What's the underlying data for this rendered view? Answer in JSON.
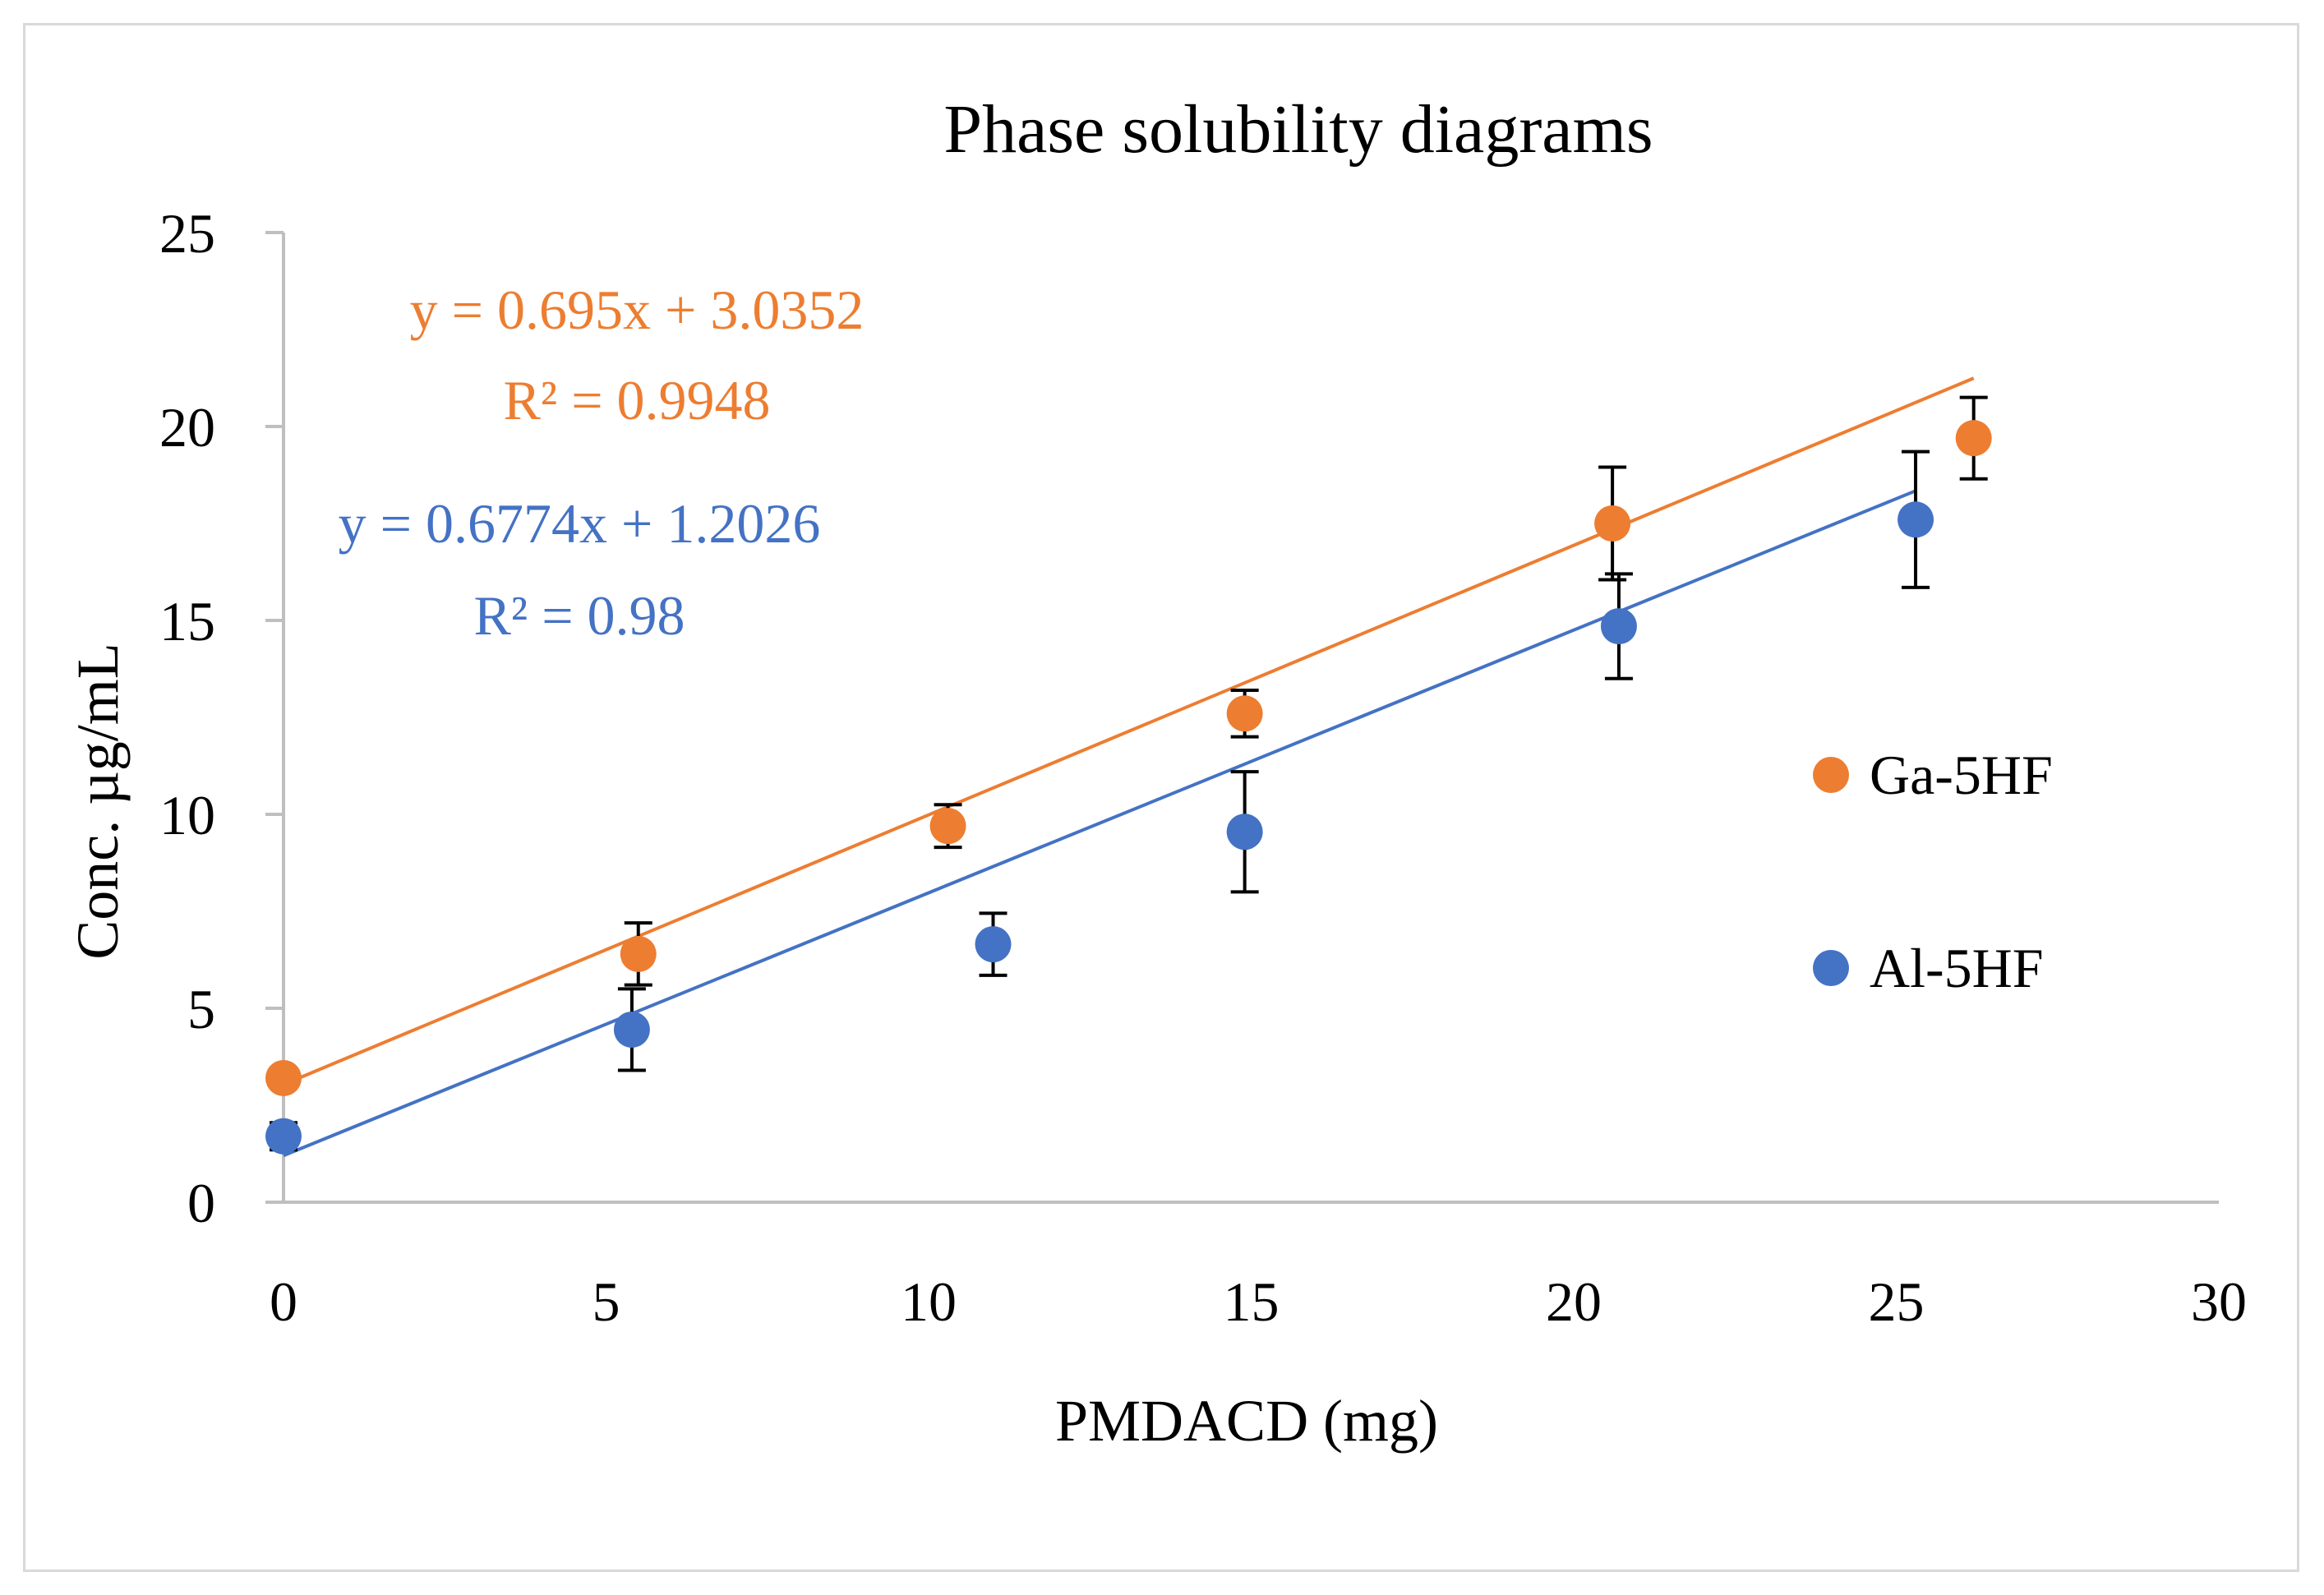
{
  "chart_data": {
    "type": "scatter",
    "title": "Phase solubility diagrams",
    "xlabel": "PMDACD (mg)",
    "ylabel": "Conc. µg/mL",
    "xlim": [
      0,
      30
    ],
    "ylim": [
      0,
      25
    ],
    "xticks": [
      "0",
      "5",
      "10",
      "15",
      "20",
      "25",
      "30"
    ],
    "yticks": [
      "0",
      "5",
      "10",
      "15",
      "20",
      "25"
    ],
    "xtick_values": [
      0,
      5,
      10,
      15,
      20,
      25,
      30
    ],
    "ytick_values": [
      0,
      5,
      10,
      15,
      20,
      25
    ],
    "grid": false,
    "legend_position": "right",
    "series": [
      {
        "name": "Ga-5HF",
        "color": "#ED7D31",
        "x": [
          0,
          5.5,
          10.3,
          14.9,
          20.6,
          26.2
        ],
        "y": [
          3.2,
          6.4,
          9.7,
          12.6,
          17.5,
          19.7
        ],
        "err": [
          0,
          0.8,
          0.55,
          0.6,
          1.45,
          1.05
        ],
        "trendline": {
          "slope": 0.695,
          "intercept": 3.0352,
          "x_end": 26.2
        },
        "equation": "y = 0.695x + 3.0352",
        "r2": "R² = 0.9948"
      },
      {
        "name": "Al-5HF",
        "color": "#4472C4",
        "x": [
          0,
          5.4,
          11.0,
          14.9,
          20.7,
          25.3
        ],
        "y": [
          1.7,
          4.45,
          6.65,
          9.55,
          14.85,
          17.6
        ],
        "err": [
          0.35,
          1.05,
          0.8,
          1.55,
          1.35,
          1.75
        ],
        "trendline": {
          "slope": 0.6774,
          "intercept": 1.2026,
          "x_end": 25.3
        },
        "equation": "y = 0.6774x + 1.2026",
        "r2": "R² = 0.98"
      }
    ]
  }
}
